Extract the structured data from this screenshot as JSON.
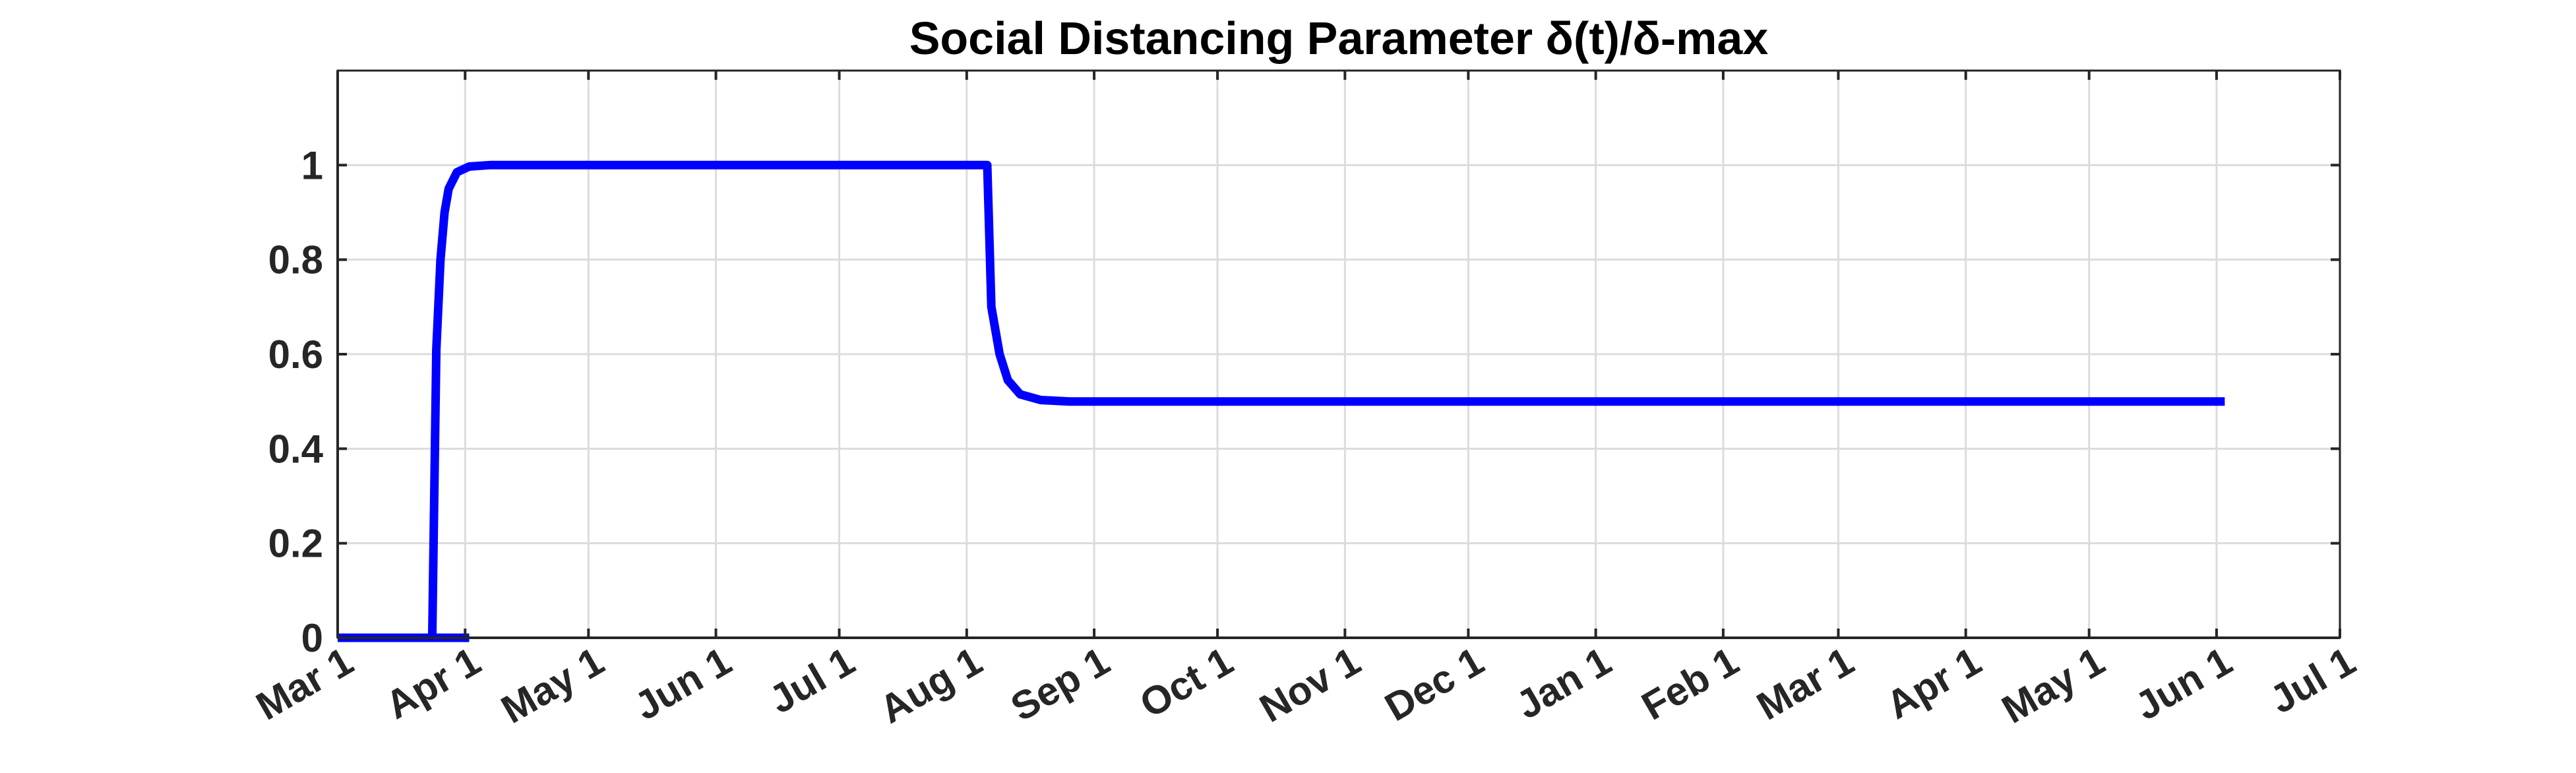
{
  "chart_data": {
    "type": "line",
    "title": "Social Distancing Parameter δ(t)/δ-max",
    "xlabel": "",
    "ylabel": "",
    "x_type": "date",
    "xlim": [
      "2020-03-01",
      "2021-07-01"
    ],
    "ylim": [
      0,
      1.2
    ],
    "x_ticks": [
      {
        "date": "2020-03-01",
        "label": "Mar 1"
      },
      {
        "date": "2020-04-01",
        "label": "Apr 1"
      },
      {
        "date": "2020-05-01",
        "label": "May 1"
      },
      {
        "date": "2020-06-01",
        "label": "Jun 1"
      },
      {
        "date": "2020-07-01",
        "label": "Jul 1"
      },
      {
        "date": "2020-08-01",
        "label": "Aug 1"
      },
      {
        "date": "2020-09-01",
        "label": "Sep 1"
      },
      {
        "date": "2020-10-01",
        "label": "Oct 1"
      },
      {
        "date": "2020-11-01",
        "label": "Nov 1"
      },
      {
        "date": "2020-12-01",
        "label": "Dec 1"
      },
      {
        "date": "2021-01-01",
        "label": "Jan 1"
      },
      {
        "date": "2021-02-01",
        "label": "Feb 1"
      },
      {
        "date": "2021-03-01",
        "label": "Mar 1"
      },
      {
        "date": "2021-04-01",
        "label": "Apr 1"
      },
      {
        "date": "2021-05-01",
        "label": "May 1"
      },
      {
        "date": "2021-06-01",
        "label": "Jun 1"
      },
      {
        "date": "2021-07-01",
        "label": "Jul 1"
      }
    ],
    "y_ticks": [
      {
        "value": 0,
        "label": "0"
      },
      {
        "value": 0.2,
        "label": "0.2"
      },
      {
        "value": 0.4,
        "label": "0.4"
      },
      {
        "value": 0.6,
        "label": "0.6"
      },
      {
        "value": 0.8,
        "label": "0.8"
      },
      {
        "value": 1,
        "label": "1"
      }
    ],
    "grid": true,
    "series": [
      {
        "color": "#0000ff",
        "points": [
          {
            "x": "2020-03-01",
            "y": 0
          },
          {
            "x": "2020-03-24",
            "y": 0
          },
          {
            "x": "2020-03-25",
            "y": 0.61
          },
          {
            "x": "2020-03-26",
            "y": 0.8
          },
          {
            "x": "2020-03-27",
            "y": 0.9
          },
          {
            "x": "2020-03-28",
            "y": 0.95
          },
          {
            "x": "2020-03-30",
            "y": 0.985
          },
          {
            "x": "2020-04-02",
            "y": 0.997
          },
          {
            "x": "2020-04-07",
            "y": 1.0
          },
          {
            "x": "2020-08-06",
            "y": 1.0
          },
          {
            "x": "2020-08-07",
            "y": 0.7
          },
          {
            "x": "2020-08-09",
            "y": 0.6
          },
          {
            "x": "2020-08-11",
            "y": 0.545
          },
          {
            "x": "2020-08-14",
            "y": 0.515
          },
          {
            "x": "2020-08-19",
            "y": 0.503
          },
          {
            "x": "2020-08-26",
            "y": 0.5
          },
          {
            "x": "2021-06-03",
            "y": 0.5
          }
        ]
      },
      {
        "color": "#0000ff",
        "points": [
          {
            "x": "2020-03-01",
            "y": 0
          },
          {
            "x": "2020-04-02",
            "y": 0
          }
        ]
      }
    ]
  }
}
